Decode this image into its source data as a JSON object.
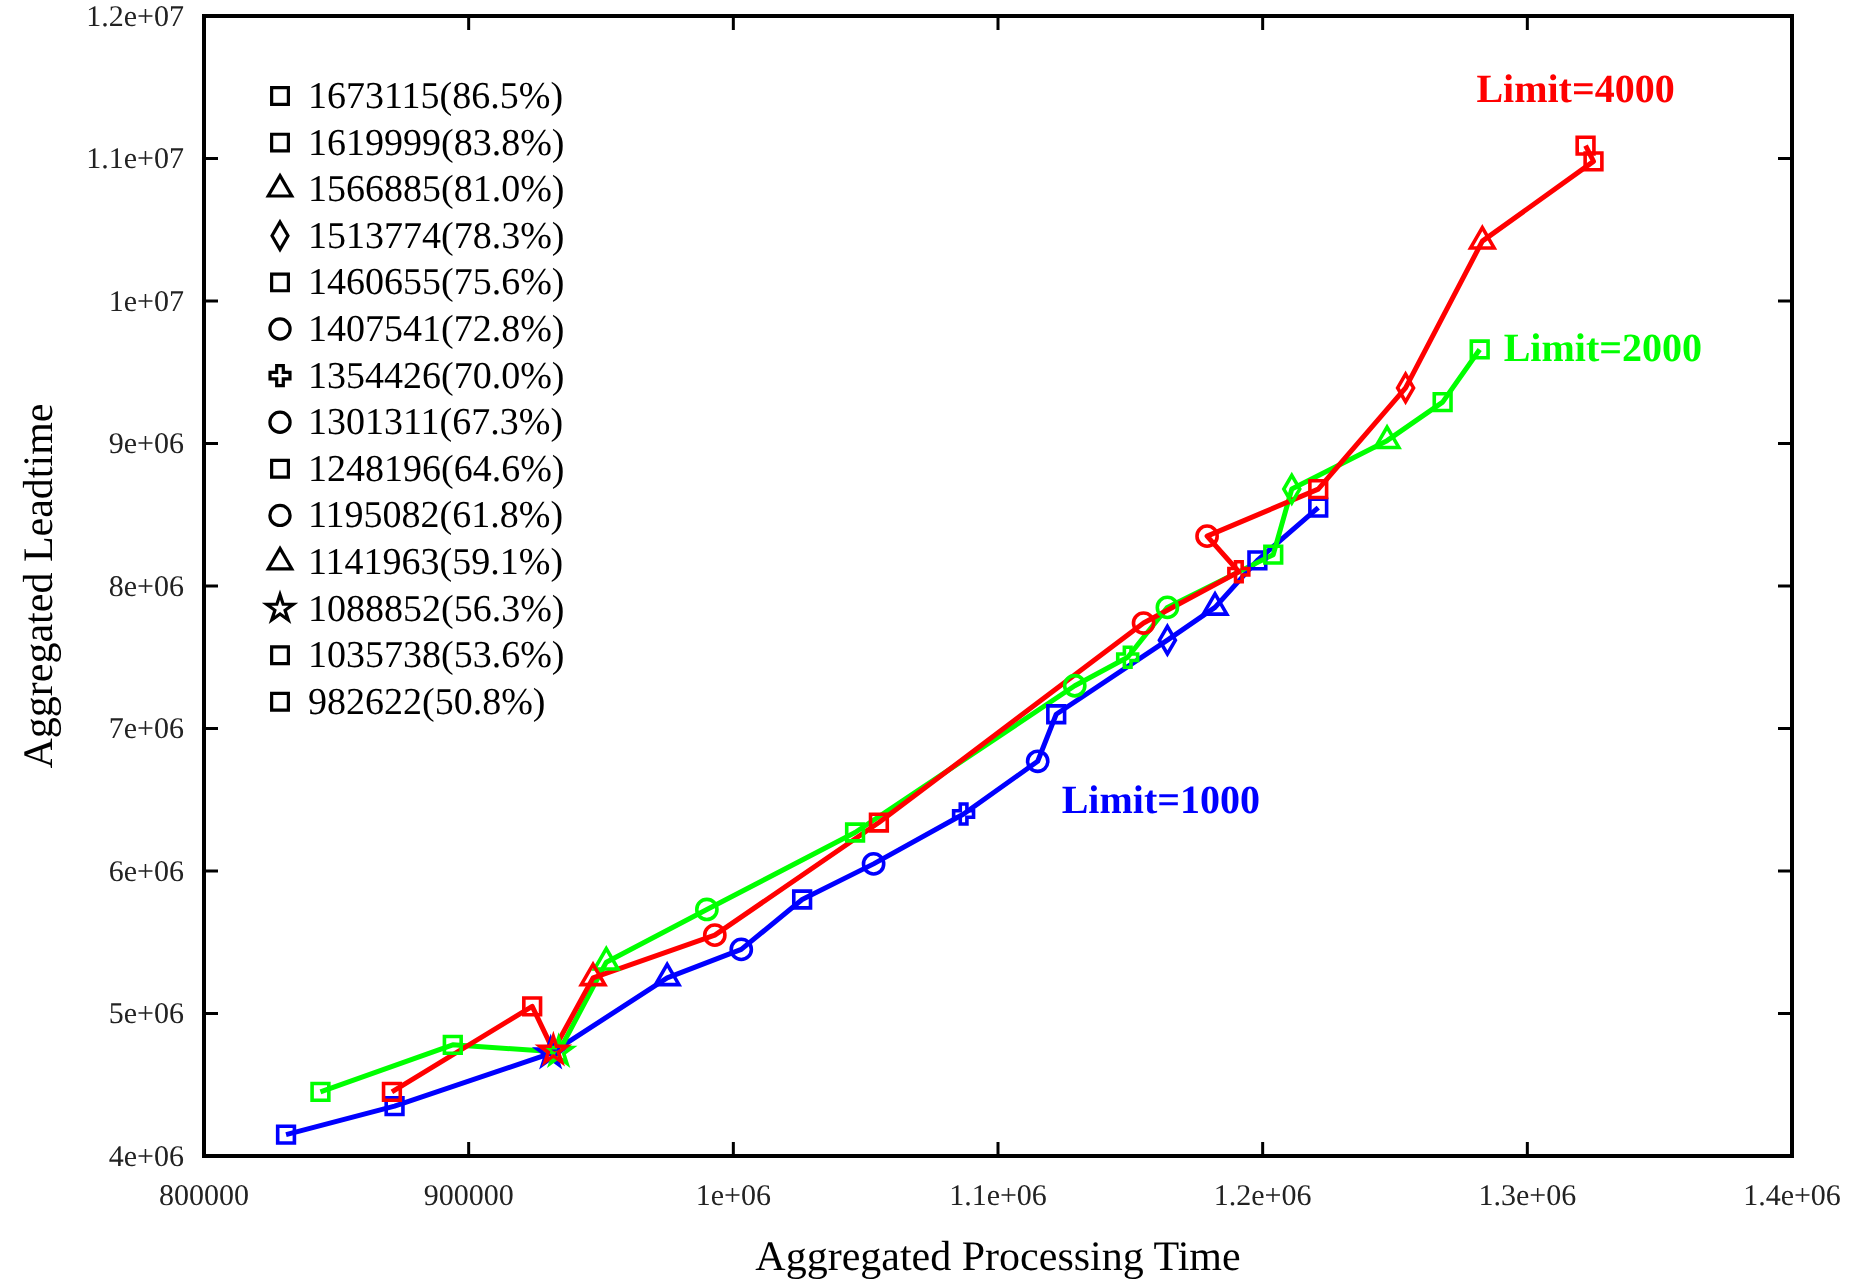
{
  "chart_data": {
    "type": "line",
    "xlabel": "Aggregated Processing Time",
    "ylabel": "Aggregated Leadtime",
    "xlim": [
      800000,
      1400000
    ],
    "ylim": [
      4000000,
      12000000
    ],
    "xticks": [
      800000,
      900000,
      {
        "value": 1000000,
        "label": "1e+06"
      },
      {
        "value": 1100000,
        "label": "1.1e+06"
      },
      {
        "value": 1200000,
        "label": "1.2e+06"
      },
      {
        "value": 1300000,
        "label": "1.3e+06"
      },
      {
        "value": 1400000,
        "label": "1.4e+06"
      }
    ],
    "yticks": [
      {
        "value": 4000000,
        "label": "4e+06"
      },
      {
        "value": 5000000,
        "label": "5e+06"
      },
      {
        "value": 6000000,
        "label": "6e+06"
      },
      {
        "value": 7000000,
        "label": "7e+06"
      },
      {
        "value": 8000000,
        "label": "8e+06"
      },
      {
        "value": 9000000,
        "label": "9e+06"
      },
      {
        "value": 10000000,
        "label": "1e+07"
      },
      {
        "value": 11000000,
        "label": "1.1e+07"
      },
      {
        "value": 12000000,
        "label": "1.2e+07"
      }
    ],
    "grid": false,
    "line_style": "solid",
    "annotations": [
      "1673115(86.5%)",
      "1619999(83.8%)",
      "1566885(81.0%)",
      "1513774(78.3%)",
      "1460655(75.6%)",
      "1407541(72.8%)",
      "1354426(70.0%)",
      "1301311(67.3%)",
      "1248196(64.6%)",
      "1195082(61.8%)",
      "1141963(59.1%)",
      "1088852(56.3%)",
      "1035738(53.6%)",
      "982622(50.8%)"
    ],
    "series": [
      {
        "name": "Limit=1000",
        "color": "#0000ff",
        "marker": "none",
        "x": [
          831000,
          872000,
          931000,
          975000,
          1003000,
          1026000,
          1053000,
          1087000,
          1115000,
          1122000,
          1164000,
          1182000,
          1198000,
          1221000
        ],
        "values": [
          4150000,
          4350000,
          4720000,
          5250000,
          5450000,
          5800000,
          6050000,
          6400000,
          6770000,
          7100000,
          7620000,
          7850000,
          8180000,
          8550000
        ]
      },
      {
        "name": "Limit=2000",
        "color": "#00ff00",
        "marker": "none",
        "x": [
          844000,
          894000,
          934000,
          952000,
          990000,
          1046000,
          1129000,
          1149000,
          1164000,
          1204000,
          1211000,
          1247000,
          1268000,
          1282000
        ],
        "values": [
          4450000,
          4780000,
          4730000,
          5360000,
          5730000,
          6270000,
          7300000,
          7500000,
          7850000,
          8220000,
          8680000,
          9020000,
          9290000,
          9660000
        ]
      },
      {
        "name": "Limit=4000",
        "color": "#ff0000",
        "marker": "none",
        "x": [
          871000,
          924000,
          932000,
          947000,
          993000,
          1055000,
          1155000,
          1191000,
          1179000,
          1221000,
          1254000,
          1283000,
          1325000,
          1322000
        ],
        "values": [
          4450000,
          5050000,
          4740000,
          5250000,
          5550000,
          6340000,
          7740000,
          8100000,
          8350000,
          8680000,
          9390000,
          10420000,
          10980000,
          11090000
        ]
      },
      {
        "type": "scatter",
        "marker": "square",
        "x": [
          1221000,
          1282000,
          1322000
        ],
        "values": [
          8550000,
          9660000,
          11090000
        ],
        "colors": [
          "#0000ff",
          "#00ff00",
          "#ff0000"
        ]
      },
      {
        "type": "scatter",
        "marker": "square",
        "x": [
          1198000,
          1268000,
          1325000
        ],
        "values": [
          8180000,
          9290000,
          10980000
        ],
        "colors": [
          "#0000ff",
          "#00ff00",
          "#ff0000"
        ]
      },
      {
        "type": "scatter",
        "marker": "triangle",
        "x": [
          1182000,
          1247000,
          1283000
        ],
        "values": [
          7850000,
          9020000,
          10420000
        ],
        "colors": [
          "#0000ff",
          "#00ff00",
          "#ff0000"
        ]
      },
      {
        "type": "scatter",
        "marker": "diamond",
        "x": [
          1164000,
          1211000,
          1254000
        ],
        "values": [
          7620000,
          8680000,
          9390000
        ],
        "colors": [
          "#0000ff",
          "#00ff00",
          "#ff0000"
        ]
      },
      {
        "type": "scatter",
        "marker": "square",
        "x": [
          1122000,
          1204000,
          1221000
        ],
        "values": [
          7100000,
          8220000,
          8680000
        ],
        "colors": [
          "#0000ff",
          "#00ff00",
          "#ff0000"
        ]
      },
      {
        "type": "scatter",
        "marker": "circle",
        "x": [
          1115000,
          1164000,
          1179000
        ],
        "values": [
          6770000,
          7850000,
          8350000
        ],
        "colors": [
          "#0000ff",
          "#00ff00",
          "#ff0000"
        ]
      },
      {
        "type": "scatter",
        "marker": "cross",
        "x": [
          1087000,
          1149000,
          1191000
        ],
        "values": [
          6400000,
          7500000,
          8100000
        ],
        "colors": [
          "#0000ff",
          "#00ff00",
          "#ff0000"
        ]
      },
      {
        "type": "scatter",
        "marker": "circle",
        "x": [
          1053000,
          1129000,
          1155000
        ],
        "values": [
          6050000,
          7300000,
          7740000
        ],
        "colors": [
          "#0000ff",
          "#00ff00",
          "#ff0000"
        ]
      },
      {
        "type": "scatter",
        "marker": "square",
        "x": [
          1026000,
          1046000,
          1055000
        ],
        "values": [
          5800000,
          6270000,
          6340000
        ],
        "colors": [
          "#0000ff",
          "#00ff00",
          "#ff0000"
        ]
      },
      {
        "type": "scatter",
        "marker": "circle",
        "x": [
          1003000,
          990000,
          993000
        ],
        "values": [
          5450000,
          5730000,
          5550000
        ],
        "colors": [
          "#0000ff",
          "#00ff00",
          "#ff0000"
        ]
      },
      {
        "type": "scatter",
        "marker": "triangle",
        "x": [
          975000,
          952000,
          947000
        ],
        "values": [
          5250000,
          5360000,
          5250000
        ],
        "colors": [
          "#0000ff",
          "#00ff00",
          "#ff0000"
        ]
      },
      {
        "type": "scatter",
        "marker": "star",
        "x": [
          931000,
          934000,
          932000
        ],
        "values": [
          4720000,
          4730000,
          4740000
        ],
        "colors": [
          "#0000ff",
          "#00ff00",
          "#ff0000"
        ]
      },
      {
        "type": "scatter",
        "marker": "square",
        "x": [
          872000,
          894000,
          924000
        ],
        "values": [
          4350000,
          4780000,
          5050000
        ],
        "colors": [
          "#0000ff",
          "#00ff00",
          "#ff0000"
        ]
      },
      {
        "type": "scatter",
        "marker": "square",
        "x": [
          831000,
          844000,
          871000
        ],
        "values": [
          4150000,
          4450000,
          4450000
        ],
        "colors": [
          "#0000ff",
          "#00ff00",
          "#ff0000"
        ]
      }
    ]
  }
}
